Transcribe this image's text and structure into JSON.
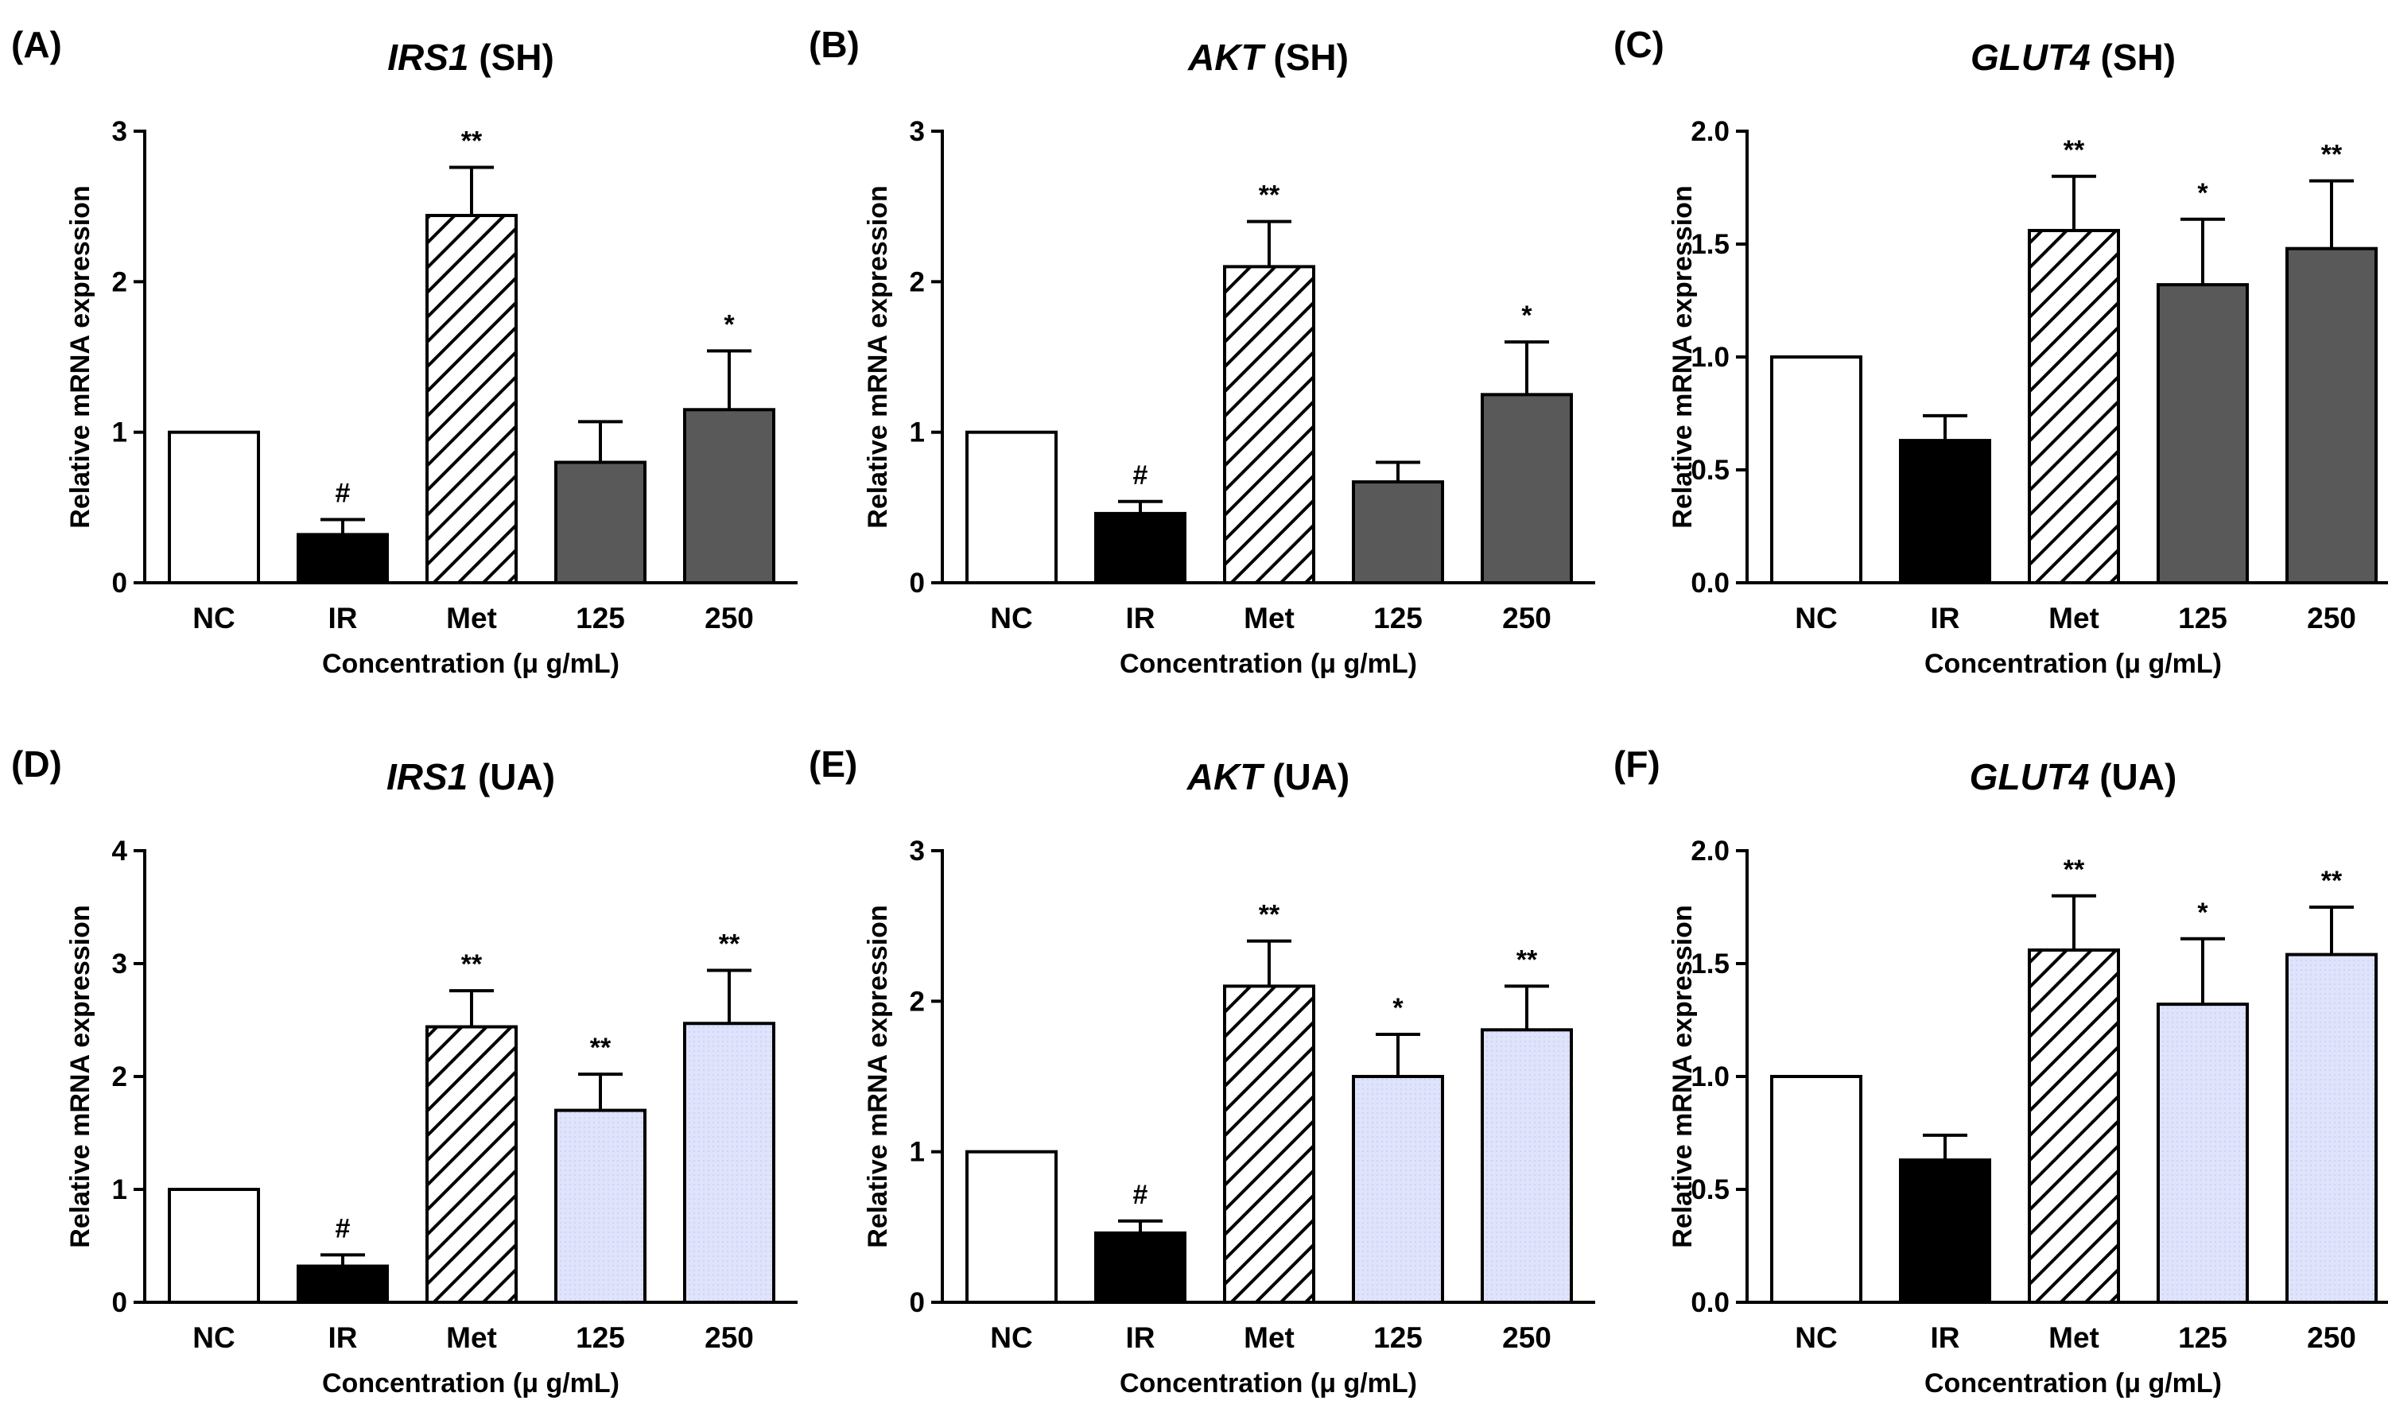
{
  "chart_data": [
    {
      "type": "bar",
      "panel": "(A)",
      "title_gene": "IRS1",
      "title_tissue": "(SH)",
      "categories": [
        "NC",
        "IR",
        "Met",
        "125",
        "250"
      ],
      "values": [
        1.0,
        0.32,
        2.44,
        0.8,
        1.15
      ],
      "errors": [
        0,
        0.1,
        0.32,
        0.27,
        0.39
      ],
      "significance": [
        "",
        "#",
        "**",
        "",
        "*"
      ],
      "bar_fills": [
        "white",
        "black",
        "hatch",
        "#595959",
        "#595959"
      ],
      "ylim": [
        0,
        3
      ],
      "yticks": [
        "0",
        "1",
        "2",
        "3"
      ],
      "ylabel": "Relative mRNA expression",
      "xlabel": "Concentration (μ g/mL)"
    },
    {
      "type": "bar",
      "panel": "(B)",
      "title_gene": "AKT",
      "title_tissue": "(SH)",
      "categories": [
        "NC",
        "IR",
        "Met",
        "125",
        "250"
      ],
      "values": [
        1.0,
        0.46,
        2.1,
        0.67,
        1.25
      ],
      "errors": [
        0,
        0.08,
        0.3,
        0.13,
        0.35
      ],
      "significance": [
        "",
        "#",
        "**",
        "",
        "*"
      ],
      "bar_fills": [
        "white",
        "black",
        "hatch",
        "#595959",
        "#595959"
      ],
      "ylim": [
        0,
        3
      ],
      "yticks": [
        "0",
        "1",
        "2",
        "3"
      ],
      "ylabel": "Relative mRNA expression",
      "xlabel": "Concentration (μ g/mL)"
    },
    {
      "type": "bar",
      "panel": "(C)",
      "title_gene": "GLUT4",
      "title_tissue": "(SH)",
      "categories": [
        "NC",
        "IR",
        "Met",
        "125",
        "250"
      ],
      "values": [
        1.0,
        0.63,
        1.56,
        1.32,
        1.48
      ],
      "errors": [
        0,
        0.11,
        0.24,
        0.29,
        0.3
      ],
      "significance": [
        "",
        "",
        "**",
        "*",
        "**"
      ],
      "bar_fills": [
        "white",
        "black",
        "hatch",
        "#595959",
        "#595959"
      ],
      "ylim": [
        0,
        2.0
      ],
      "yticks": [
        "0.0",
        "0.5",
        "1.0",
        "1.5",
        "2.0"
      ],
      "ylabel": "Relative mRNA expression",
      "xlabel": "Concentration (μ g/mL)"
    },
    {
      "type": "bar",
      "panel": "(D)",
      "title_gene": "IRS1",
      "title_tissue": "(UA)",
      "categories": [
        "NC",
        "IR",
        "Met",
        "125",
        "250"
      ],
      "values": [
        1.0,
        0.32,
        2.44,
        1.7,
        2.47
      ],
      "errors": [
        0,
        0.1,
        0.32,
        0.32,
        0.47
      ],
      "significance": [
        "",
        "#",
        "**",
        "**",
        "**"
      ],
      "bar_fills": [
        "white",
        "black",
        "hatch",
        "#dfe3fb",
        "#dfe3fb"
      ],
      "ylim": [
        0,
        4
      ],
      "yticks": [
        "0",
        "1",
        "2",
        "3",
        "4"
      ],
      "ylabel": "Relative mRNA expression",
      "xlabel": "Concentration (μ g/mL)"
    },
    {
      "type": "bar",
      "panel": "(E)",
      "title_gene": "AKT",
      "title_tissue": "(UA)",
      "categories": [
        "NC",
        "IR",
        "Met",
        "125",
        "250"
      ],
      "values": [
        1.0,
        0.46,
        2.1,
        1.5,
        1.81
      ],
      "errors": [
        0,
        0.08,
        0.3,
        0.28,
        0.29
      ],
      "significance": [
        "",
        "#",
        "**",
        "*",
        "**"
      ],
      "bar_fills": [
        "white",
        "black",
        "hatch",
        "#dfe3fb",
        "#dfe3fb"
      ],
      "ylim": [
        0,
        3
      ],
      "yticks": [
        "0",
        "1",
        "2",
        "3"
      ],
      "ylabel": "Relative mRNA expression",
      "xlabel": "Concentration (μ g/mL)"
    },
    {
      "type": "bar",
      "panel": "(F)",
      "title_gene": "GLUT4",
      "title_tissue": "(UA)",
      "categories": [
        "NC",
        "IR",
        "Met",
        "125",
        "250"
      ],
      "values": [
        1.0,
        0.63,
        1.56,
        1.32,
        1.54
      ],
      "errors": [
        0,
        0.11,
        0.24,
        0.29,
        0.21
      ],
      "significance": [
        "",
        "",
        "**",
        "*",
        "**"
      ],
      "bar_fills": [
        "white",
        "black",
        "hatch",
        "#dfe3fb",
        "#dfe3fb"
      ],
      "ylim": [
        0,
        2.0
      ],
      "yticks": [
        "0.0",
        "0.5",
        "1.0",
        "1.5",
        "2.0"
      ],
      "ylabel": "Relative mRNA expression",
      "xlabel": "Concentration (μ g/mL)"
    }
  ]
}
